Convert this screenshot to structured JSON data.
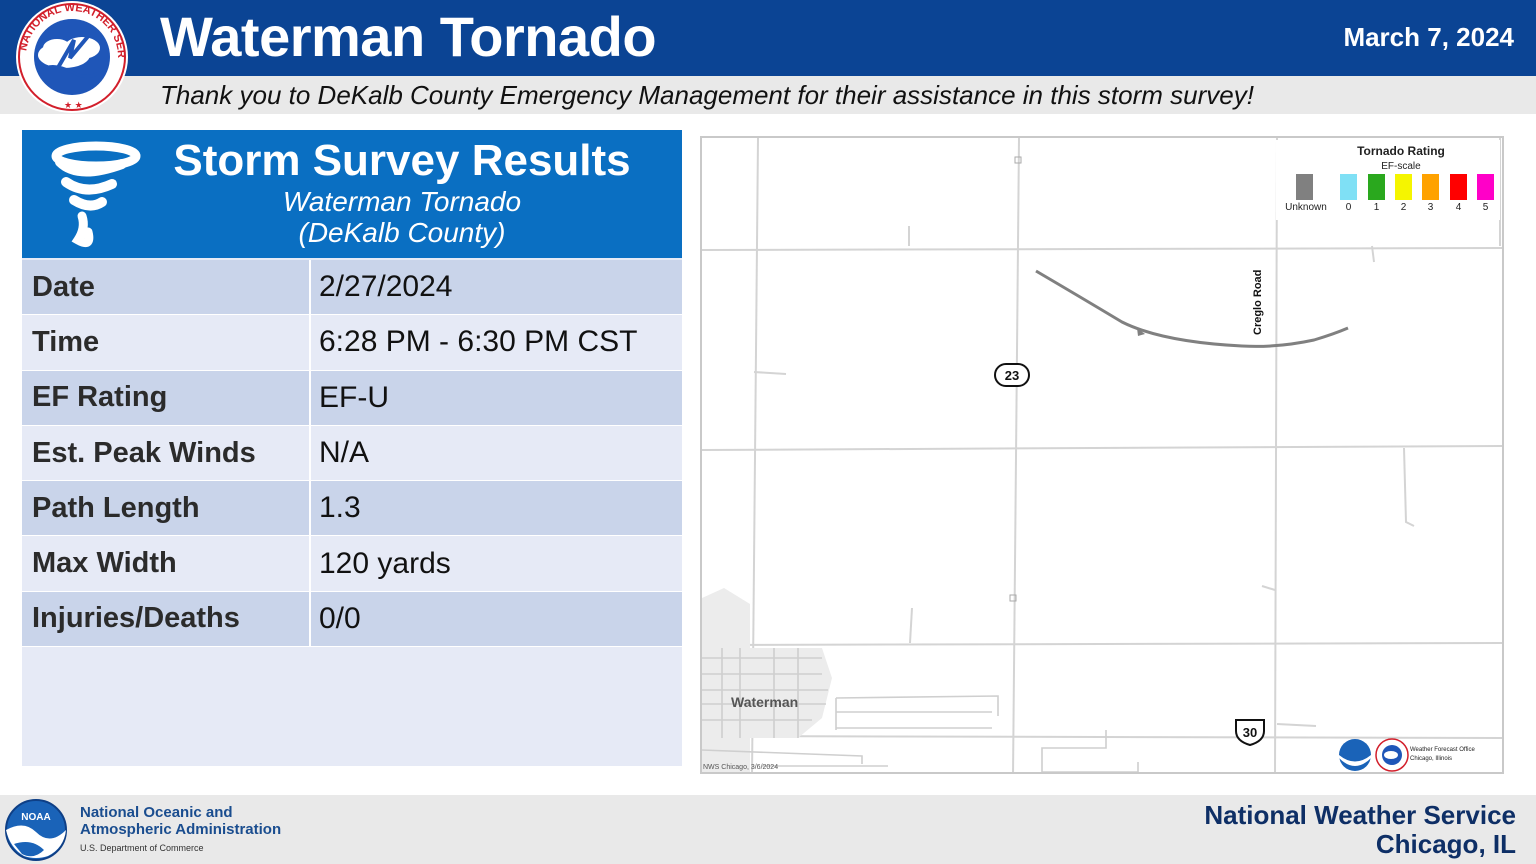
{
  "header": {
    "title": "Waterman Tornado",
    "date": "March 7, 2024",
    "thanks": "Thank you to DeKalb County Emergency Management for their assistance in this storm survey!",
    "logo_text": "NATIONAL WEATHER SERVICE",
    "logo_icon": "nws-logo-icon",
    "colors": {
      "bar": "#0b4494",
      "subbar": "#e9e9e9"
    }
  },
  "survey": {
    "title": "Storm Survey Results",
    "subtitle": "Waterman Tornado",
    "county": "(DeKalb County)",
    "icon": "tornado-icon",
    "rows": [
      {
        "label": "Date",
        "value": "2/27/2024"
      },
      {
        "label": "Time",
        "value": "6:28 PM - 6:30 PM CST"
      },
      {
        "label": "EF Rating",
        "value": "EF-U"
      },
      {
        "label": "Est. Peak Winds",
        "value": "N/A"
      },
      {
        "label": "Path Length",
        "value": "1.3"
      },
      {
        "label": "Max Width",
        "value": "120 yards"
      },
      {
        "label": "Injuries/Deaths",
        "value": "0/0"
      }
    ],
    "colors": {
      "head": "#0a6fc2",
      "row_dark": "#c9d4ea",
      "row_light": "#e6eaf6"
    }
  },
  "map": {
    "legend": {
      "title": "Tornado Rating",
      "subtitle": "EF-scale",
      "items": [
        {
          "label": "Unknown",
          "color": "#808080"
        },
        {
          "label": "0",
          "color": "#7fe0f5"
        },
        {
          "label": "1",
          "color": "#2aa81e"
        },
        {
          "label": "2",
          "color": "#f5f500"
        },
        {
          "label": "3",
          "color": "#ffa200"
        },
        {
          "label": "4",
          "color": "#ff0000"
        },
        {
          "label": "5",
          "color": "#ff00c8"
        }
      ]
    },
    "town": "Waterman",
    "road": "Creglo Road",
    "route_state": "23",
    "route_us": "30",
    "credit": "NWS Chicago, 3/6/2024",
    "wfo_line1": "Weather Forecast Office",
    "wfo_line2": "Chicago, Illinois",
    "track_color": "#808080"
  },
  "footer": {
    "noaa_line1": "National Oceanic and",
    "noaa_line2": "Atmospheric Administration",
    "noaa_dept": "U.S. Department of Commerce",
    "nws_line1": "National Weather Service",
    "nws_line2": "Chicago, IL",
    "noaa_icon": "noaa-logo-icon"
  }
}
